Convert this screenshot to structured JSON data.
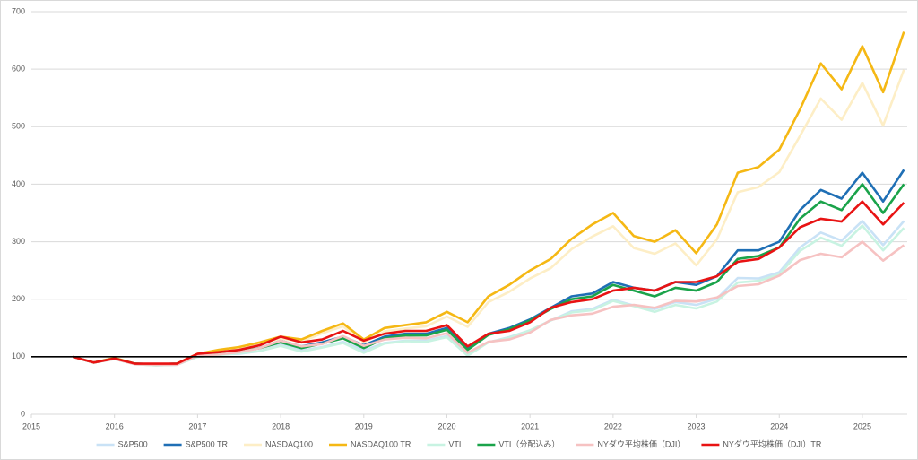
{
  "chart_data": {
    "type": "line",
    "x": [
      2015.5,
      2015.75,
      2016,
      2016.25,
      2016.5,
      2016.75,
      2017,
      2017.25,
      2017.5,
      2017.75,
      2018,
      2018.25,
      2018.5,
      2018.75,
      2019,
      2019.25,
      2019.5,
      2019.75,
      2020,
      2020.25,
      2020.5,
      2020.75,
      2021,
      2021.25,
      2021.5,
      2021.75,
      2022,
      2022.25,
      2022.5,
      2022.75,
      2023,
      2023.25,
      2023.5,
      2023.75,
      2024,
      2024.25,
      2024.5,
      2024.75,
      2025,
      2025.25,
      2025.5
    ],
    "xlim": [
      2015,
      2025.54
    ],
    "xticks": [
      2015,
      2016,
      2017,
      2018,
      2019,
      2020,
      2021,
      2022,
      2023,
      2024,
      2025
    ],
    "ylim": [
      0,
      700
    ],
    "yticks": [
      0,
      100,
      200,
      300,
      400,
      500,
      600,
      700
    ],
    "grid": true,
    "reference_line": 100,
    "legend": "bottom",
    "series": [
      {
        "name": "S&P500",
        "color": "#c9e2f6",
        "values": [
          100,
          90,
          96,
          87,
          85,
          86,
          100,
          104,
          105,
          110,
          121,
          111,
          117,
          126,
          111,
          124,
          128,
          128,
          136,
          104,
          125,
          134,
          146,
          163,
          179,
          183,
          199,
          189,
          183,
          195,
          190,
          201,
          237,
          236,
          247,
          290,
          316,
          302,
          336,
          294,
          336
        ]
      },
      {
        "name": "S&P500 TR",
        "color": "#1f6fb5",
        "values": [
          100,
          90,
          97,
          88,
          87,
          88,
          103,
          108,
          110,
          115,
          128,
          118,
          125,
          135,
          120,
          135,
          140,
          140,
          150,
          115,
          140,
          150,
          165,
          185,
          205,
          210,
          230,
          220,
          215,
          230,
          225,
          240,
          285,
          285,
          300,
          355,
          390,
          375,
          420,
          370,
          425
        ]
      },
      {
        "name": "NASDAQ100",
        "color": "#fdeec6",
        "values": [
          100,
          90,
          97,
          87,
          85,
          87,
          103,
          110,
          115,
          122,
          132,
          126,
          141,
          153,
          125,
          144,
          149,
          153,
          170,
          152,
          195,
          213,
          236,
          254,
          287,
          309,
          327,
          289,
          279,
          297,
          259,
          304,
          386,
          395,
          421,
          484,
          549,
          512,
          576,
          502,
          599
        ]
      },
      {
        "name": "NASDAQ100 TR",
        "color": "#f5b814",
        "values": [
          100,
          90,
          98,
          88,
          86,
          88,
          105,
          112,
          117,
          125,
          135,
          130,
          145,
          158,
          130,
          150,
          155,
          160,
          178,
          160,
          205,
          225,
          250,
          270,
          305,
          330,
          350,
          310,
          300,
          320,
          280,
          330,
          420,
          430,
          460,
          530,
          610,
          565,
          640,
          560,
          665
        ]
      },
      {
        "name": "VTI",
        "color": "#c8f3e2",
        "values": [
          100,
          90,
          96,
          87,
          85,
          86,
          100,
          103,
          106,
          110,
          119,
          109,
          116,
          124,
          107,
          123,
          127,
          126,
          134,
          102,
          125,
          133,
          146,
          163,
          177,
          181,
          197,
          188,
          178,
          190,
          184,
          196,
          229,
          232,
          243,
          284,
          307,
          293,
          328,
          285,
          324
        ]
      },
      {
        "name": "VTI（分配込み）",
        "color": "#1aa34a",
        "values": [
          100,
          90,
          97,
          88,
          87,
          88,
          103,
          107,
          110,
          115,
          125,
          115,
          123,
          132,
          115,
          132,
          137,
          137,
          147,
          112,
          138,
          148,
          163,
          183,
          200,
          205,
          225,
          215,
          205,
          220,
          215,
          230,
          270,
          275,
          290,
          340,
          370,
          355,
          400,
          350,
          400
        ]
      },
      {
        "name": "NYダウ平均株価（DJI）",
        "color": "#f6c2c2",
        "values": [
          100,
          90,
          96,
          87,
          86,
          86,
          102,
          104,
          108,
          115,
          128,
          118,
          122,
          136,
          119,
          130,
          133,
          132,
          141,
          107,
          126,
          130,
          142,
          164,
          172,
          175,
          187,
          190,
          185,
          197,
          196,
          203,
          223,
          226,
          241,
          268,
          279,
          273,
          300,
          267,
          294
        ]
      },
      {
        "name": "NYダウ平均株価（DJI）TR",
        "color": "#e81313",
        "values": [
          100,
          90,
          97,
          88,
          88,
          88,
          105,
          108,
          112,
          120,
          135,
          125,
          130,
          145,
          128,
          140,
          145,
          145,
          155,
          118,
          140,
          145,
          160,
          185,
          195,
          200,
          215,
          220,
          215,
          230,
          230,
          240,
          265,
          270,
          290,
          325,
          340,
          335,
          370,
          330,
          368
        ]
      }
    ]
  }
}
